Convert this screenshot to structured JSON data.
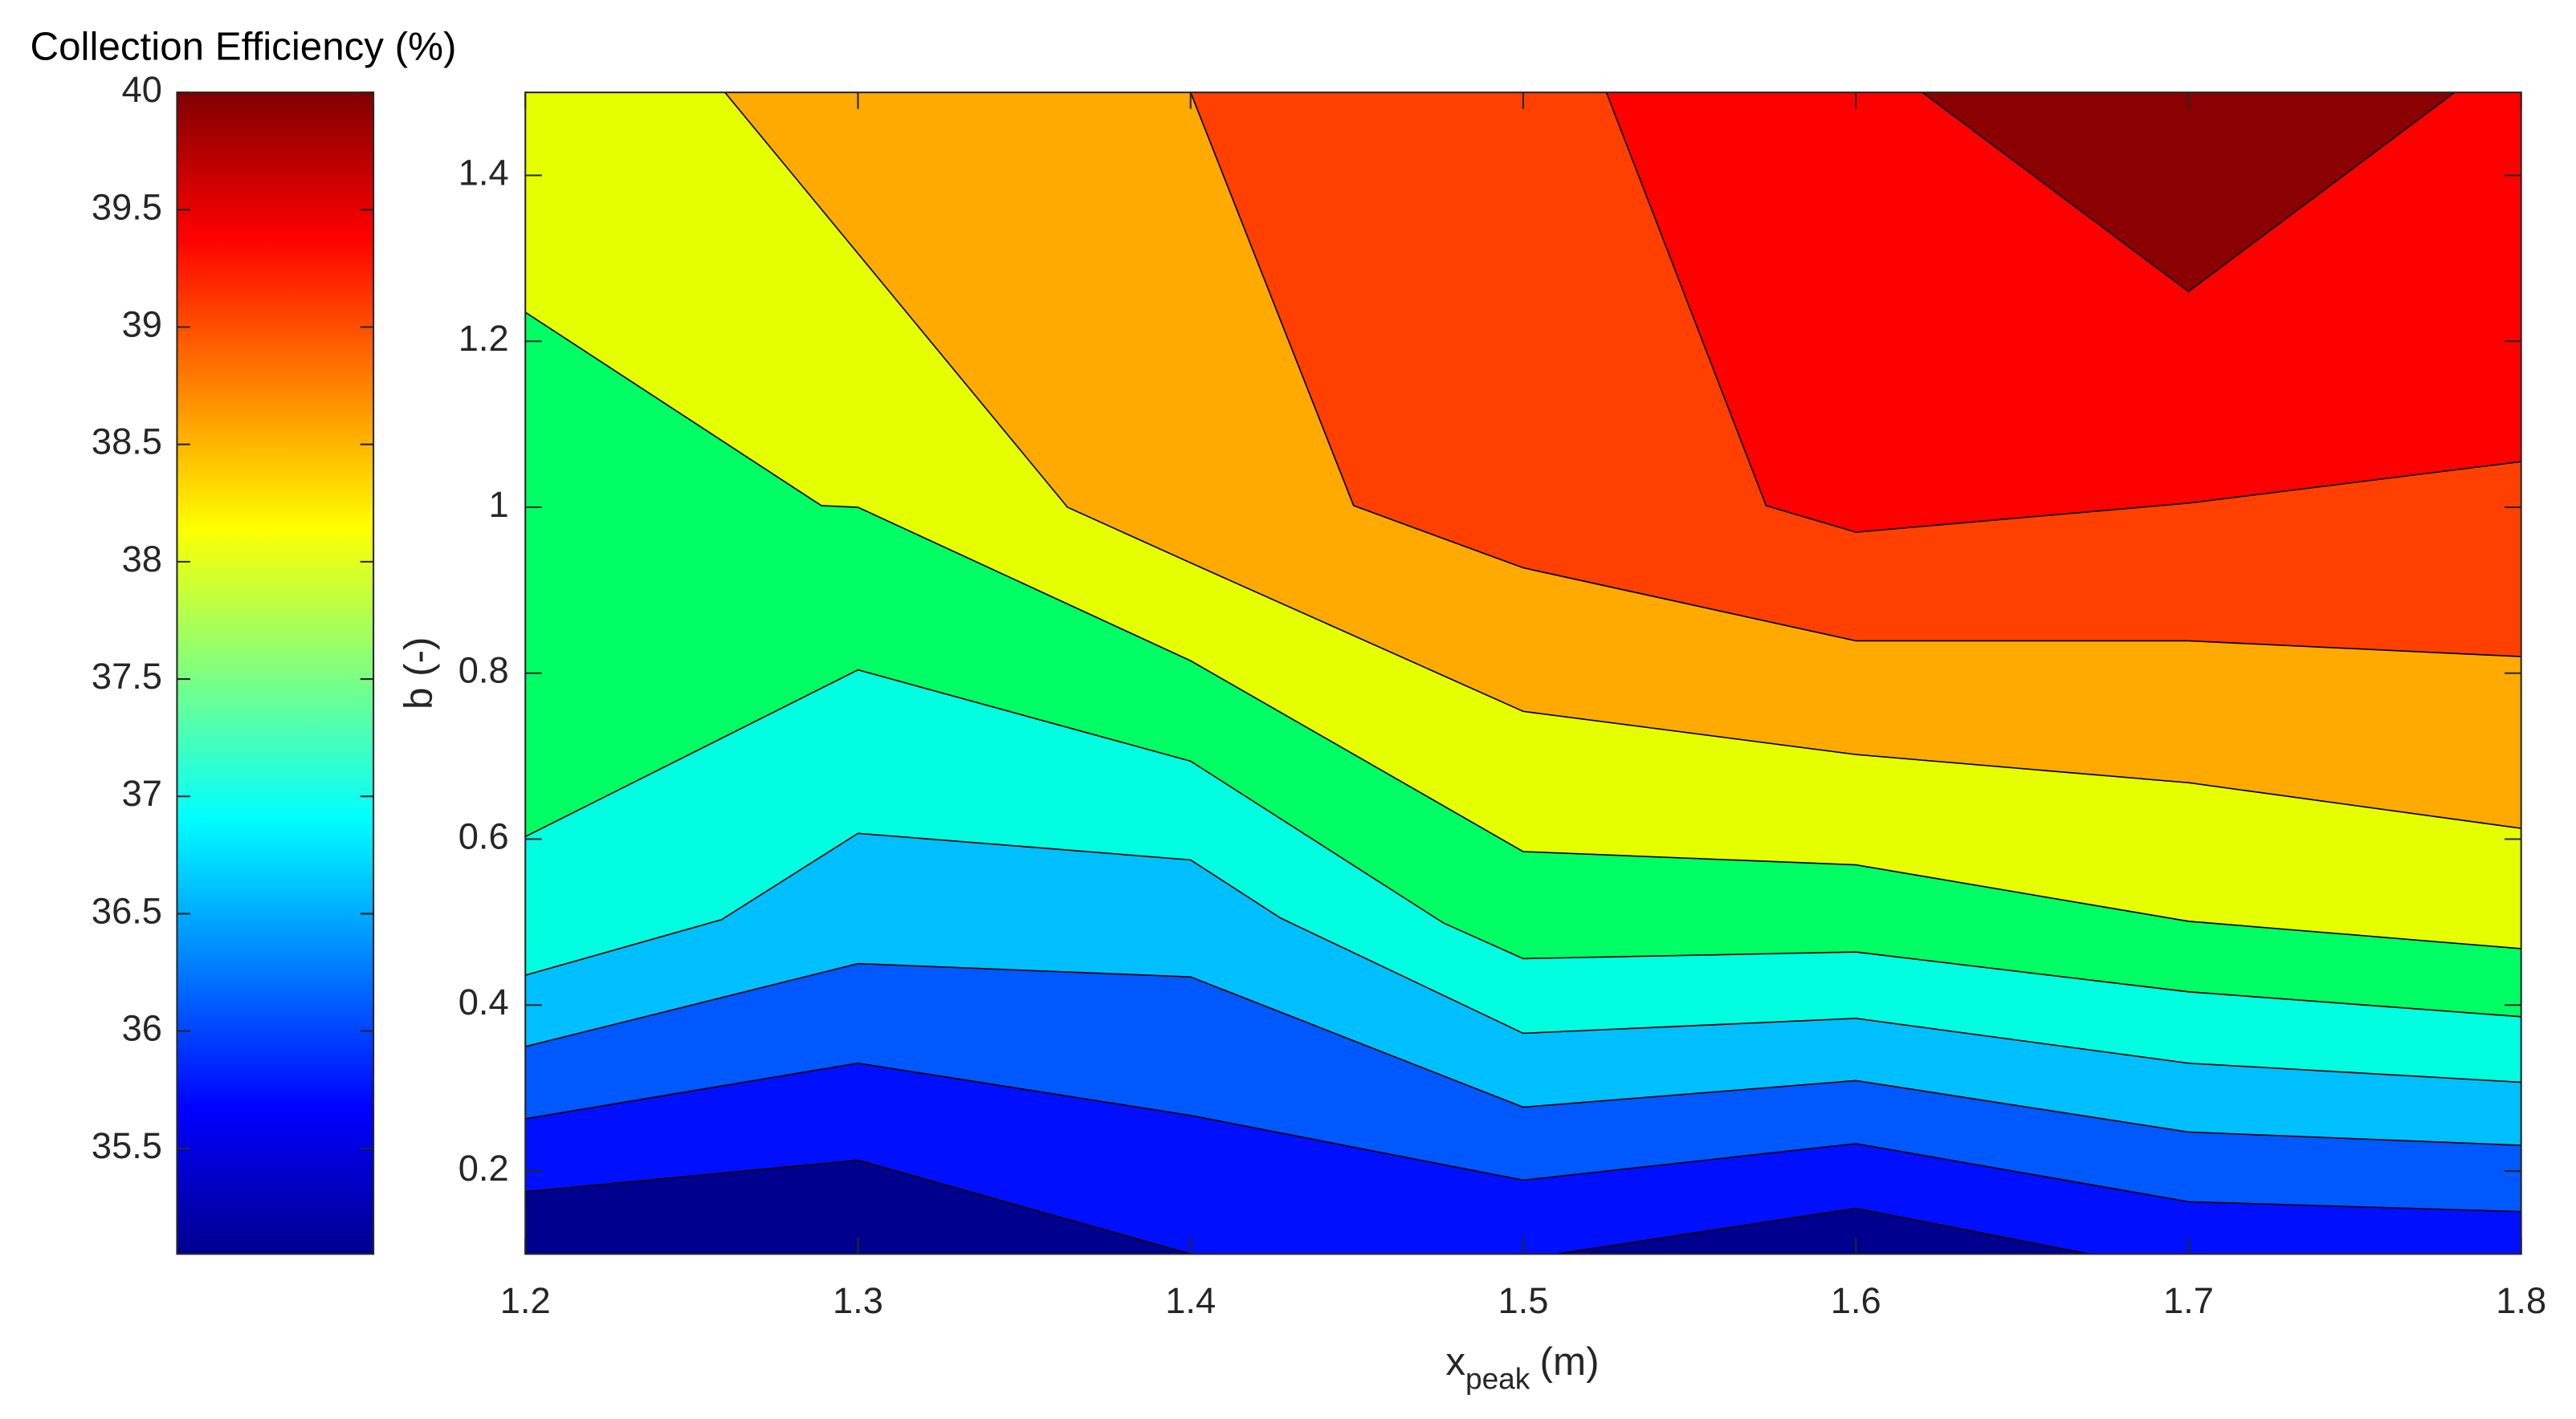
{
  "chart_data": {
    "type": "contour",
    "xlabel": {
      "text": "x",
      "subscript": "peak",
      "unit": "(m)"
    },
    "ylabel": "b (-)",
    "xlim": [
      1.2,
      1.8
    ],
    "xticks": [
      1.2,
      1.3,
      1.4,
      1.5,
      1.6,
      1.7,
      1.8
    ],
    "ylim": [
      0.1,
      1.5
    ],
    "yticks": [
      0.2,
      0.4,
      0.6,
      0.8,
      1,
      1.2,
      1.4
    ],
    "background": "#00008f",
    "colorbar": {
      "title": "Collection Efficiency (%)",
      "clim": [
        35.05,
        40
      ],
      "ticks": [
        35.5,
        36,
        36.5,
        37,
        37.5,
        38,
        38.5,
        39,
        39.5,
        40
      ],
      "colormap": [
        "#00008f",
        "#0000ff",
        "#0080ff",
        "#00ffff",
        "#80ff80",
        "#ffff00",
        "#ff8000",
        "#ff0000",
        "#800000"
      ]
    },
    "contours": [
      {
        "color": "#0010ff",
        "x": [
          1.2,
          1.3,
          1.4,
          1.51,
          1.6,
          1.67,
          1.8
        ],
        "y": [
          0.175,
          0.213,
          0.1,
          0.1,
          0.155,
          0.1,
          0.1
        ]
      },
      {
        "color": "#0058ff",
        "x": [
          1.2,
          1.3,
          1.4,
          1.5,
          1.6,
          1.7,
          1.8
        ],
        "y": [
          0.263,
          0.33,
          0.267,
          0.189,
          0.233,
          0.163,
          0.151
        ]
      },
      {
        "color": "#00bfff",
        "x": [
          1.2,
          1.3,
          1.4,
          1.5,
          1.6,
          1.7,
          1.8
        ],
        "y": [
          0.35,
          0.45,
          0.434,
          0.277,
          0.309,
          0.247,
          0.231
        ]
      },
      {
        "color": "#00ffe1",
        "x": [
          1.2,
          1.259,
          1.3,
          1.4,
          1.427,
          1.5,
          1.6,
          1.7,
          1.8
        ],
        "y": [
          0.436,
          0.503,
          0.607,
          0.575,
          0.505,
          0.366,
          0.384,
          0.33,
          0.307
        ]
      },
      {
        "color": "#00ff64",
        "x": [
          1.2,
          1.3,
          1.4,
          1.476,
          1.5,
          1.6,
          1.7,
          1.8
        ],
        "y": [
          0.603,
          0.804,
          0.694,
          0.499,
          0.456,
          0.464,
          0.416,
          0.386
        ]
      },
      {
        "color": "#e6ff00",
        "x": [
          1.2,
          1.289,
          1.3,
          1.4,
          1.5,
          1.6,
          1.7,
          1.8
        ],
        "y": [
          1.235,
          1.002,
          1.0,
          0.815,
          0.585,
          0.569,
          0.501,
          0.468
        ]
      },
      {
        "color": "#ffaa00",
        "x": [
          1.2,
          1.26,
          1.363,
          1.4,
          1.5,
          1.6,
          1.7,
          1.8
        ],
        "y": [
          1.5,
          1.5,
          1.0,
          0.933,
          0.754,
          0.702,
          0.668,
          0.613
        ]
      },
      {
        "color": "#ff4000",
        "x": [
          1.2,
          1.4,
          1.449,
          1.5,
          1.6,
          1.7,
          1.8
        ],
        "y": [
          1.5,
          1.5,
          1.002,
          0.927,
          0.839,
          0.839,
          0.82
        ]
      },
      {
        "color": "#ff0000",
        "x": [
          1.2,
          1.525,
          1.573,
          1.6,
          1.7,
          1.8
        ],
        "y": [
          1.5,
          1.5,
          1.002,
          0.97,
          1.005,
          1.055
        ]
      },
      {
        "color": "#8b0000",
        "x": [
          1.2,
          1.62,
          1.7,
          1.78,
          1.8
        ],
        "y": [
          1.5,
          1.5,
          1.26,
          1.5,
          1.5
        ]
      }
    ]
  }
}
